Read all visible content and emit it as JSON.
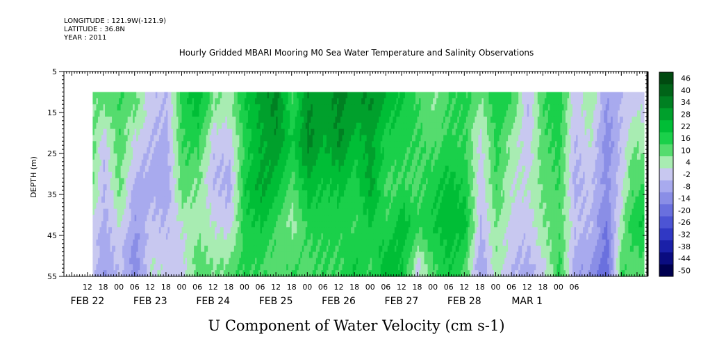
{
  "header": {
    "longitude": "LONGITUDE : 121.9W(-121.9)",
    "latitude": "LATITUDE : 36.8N",
    "year": "YEAR : 2011"
  },
  "chart_data": {
    "type": "heatmap",
    "title": "Hourly Gridded MBARI Mooring M0 Sea Water Temperature and Salinity Observations",
    "xlabel": "U Component of Water Velocity (cm s-1)",
    "ylabel": "DEPTH (m)",
    "y_ticks": [
      5,
      15,
      25,
      35,
      45,
      55
    ],
    "ylim": [
      55,
      5
    ],
    "y_reversed": true,
    "data_depth_range": [
      10,
      55
    ],
    "hour_ticks": [
      "12",
      "18",
      "00",
      "06",
      "12",
      "18",
      "00",
      "06",
      "12",
      "18",
      "00",
      "06",
      "12",
      "18",
      "00",
      "06",
      "12",
      "18",
      "00",
      "06",
      "12",
      "18",
      "00",
      "06",
      "12",
      "18",
      "00",
      "06",
      "12",
      "18",
      "00",
      "06"
    ],
    "date_labels": [
      "FEB 22",
      "FEB 23",
      "FEB 24",
      "FEB 25",
      "FEB 26",
      "FEB 27",
      "FEB 28",
      "MAR  1"
    ],
    "time_range_hours_since_feb22_00": [
      14,
      224
    ],
    "colorbar": {
      "levels": [
        46,
        40,
        34,
        28,
        22,
        16,
        10,
        4,
        -2,
        -8,
        -14,
        -20,
        -26,
        -32,
        -38,
        -44,
        -50
      ],
      "colors_top_to_bottom": [
        "#004a10",
        "#006418",
        "#008022",
        "#00a02c",
        "#00be36",
        "#1ad04a",
        "#55dc6e",
        "#a8ecb2",
        "#c8c8f0",
        "#a8aaee",
        "#8a8ee6",
        "#6a70de",
        "#4c54d4",
        "#3038c4",
        "#1a20a8",
        "#0a0c80",
        "#000050"
      ]
    },
    "column_profiles": [
      {
        "hour": 14,
        "v": [
          5,
          5,
          4,
          -4,
          -6
        ]
      },
      {
        "hour": 18,
        "v": [
          6,
          -6,
          -8,
          -10,
          -14
        ]
      },
      {
        "hour": 24,
        "v": [
          10,
          8,
          6,
          -2,
          -6
        ]
      },
      {
        "hour": 30,
        "v": [
          6,
          -4,
          -10,
          -14,
          -18
        ]
      },
      {
        "hour": 36,
        "v": [
          -6,
          -8,
          -10,
          -6,
          -2
        ]
      },
      {
        "hour": 42,
        "v": [
          -8,
          -10,
          -12,
          -8,
          -4
        ]
      },
      {
        "hour": 48,
        "v": [
          12,
          10,
          8,
          -2,
          -4
        ]
      },
      {
        "hour": 54,
        "v": [
          20,
          12,
          4,
          2,
          8
        ]
      },
      {
        "hour": 60,
        "v": [
          4,
          -6,
          -8,
          -2,
          4
        ]
      },
      {
        "hour": 66,
        "v": [
          2,
          -6,
          -10,
          -6,
          6
        ]
      },
      {
        "hour": 72,
        "v": [
          16,
          12,
          16,
          14,
          12
        ]
      },
      {
        "hour": 78,
        "v": [
          24,
          22,
          24,
          16,
          10
        ]
      },
      {
        "hour": 84,
        "v": [
          30,
          26,
          20,
          10,
          6
        ]
      },
      {
        "hour": 90,
        "v": [
          10,
          16,
          8,
          2,
          10
        ]
      },
      {
        "hour": 96,
        "v": [
          28,
          30,
          20,
          12,
          8
        ]
      },
      {
        "hour": 102,
        "v": [
          24,
          22,
          16,
          12,
          10
        ]
      },
      {
        "hour": 108,
        "v": [
          30,
          28,
          18,
          12,
          10
        ]
      },
      {
        "hour": 114,
        "v": [
          26,
          18,
          14,
          10,
          16
        ]
      },
      {
        "hour": 120,
        "v": [
          28,
          24,
          24,
          16,
          10
        ]
      },
      {
        "hour": 126,
        "v": [
          20,
          14,
          8,
          12,
          20
        ]
      },
      {
        "hour": 132,
        "v": [
          16,
          12,
          10,
          20,
          16
        ]
      },
      {
        "hour": 138,
        "v": [
          10,
          10,
          8,
          12,
          -4
        ]
      },
      {
        "hour": 144,
        "v": [
          4,
          8,
          14,
          16,
          10
        ]
      },
      {
        "hour": 150,
        "v": [
          10,
          12,
          18,
          20,
          16
        ]
      },
      {
        "hour": 156,
        "v": [
          12,
          10,
          14,
          18,
          8
        ]
      },
      {
        "hour": 162,
        "v": [
          4,
          -4,
          -6,
          -8,
          -14
        ]
      },
      {
        "hour": 168,
        "v": [
          14,
          12,
          10,
          4,
          2
        ]
      },
      {
        "hour": 174,
        "v": [
          10,
          2,
          -2,
          -4,
          -8
        ]
      },
      {
        "hour": 180,
        "v": [
          -8,
          -6,
          -2,
          -6,
          -10
        ]
      },
      {
        "hour": 186,
        "v": [
          10,
          8,
          6,
          4,
          -4
        ]
      },
      {
        "hour": 192,
        "v": [
          14,
          12,
          10,
          8,
          12
        ]
      },
      {
        "hour": 198,
        "v": [
          -6,
          -8,
          -10,
          -6,
          -12
        ]
      },
      {
        "hour": 204,
        "v": [
          4,
          -2,
          -6,
          -8,
          -14
        ]
      },
      {
        "hour": 210,
        "v": [
          -14,
          -18,
          -16,
          -20,
          -26
        ]
      },
      {
        "hour": 216,
        "v": [
          -8,
          -6,
          -4,
          2,
          10
        ]
      },
      {
        "hour": 220,
        "v": [
          -4,
          4,
          8,
          14,
          6
        ]
      },
      {
        "hour": 224,
        "v": [
          -4,
          2,
          10,
          16,
          8
        ]
      }
    ]
  }
}
